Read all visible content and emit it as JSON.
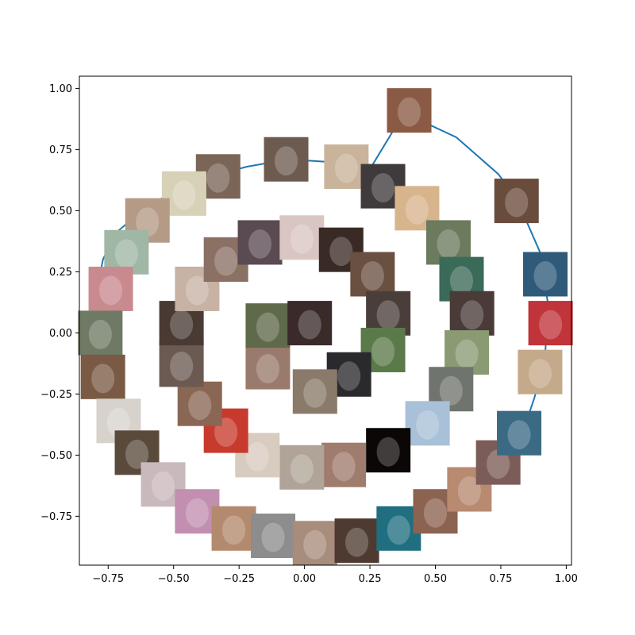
{
  "chart_data": {
    "type": "scatter",
    "title": "",
    "xlabel": "",
    "ylabel": "",
    "xlim": [
      -0.86,
      1.02
    ],
    "ylim": [
      -0.95,
      1.05
    ],
    "x_ticks": [
      "−0.75",
      "−0.50",
      "−0.25",
      "0.00",
      "0.25",
      "0.50",
      "0.75",
      "1.00"
    ],
    "x_tick_values": [
      -0.75,
      -0.5,
      -0.25,
      0.0,
      0.25,
      0.5,
      0.75,
      1.0
    ],
    "y_ticks": [
      "−0.75",
      "−0.50",
      "−0.25",
      "0.00",
      "0.25",
      "0.50",
      "0.75",
      "1.00"
    ],
    "y_tick_values": [
      -0.75,
      -0.5,
      -0.25,
      0.0,
      0.25,
      0.5,
      0.75,
      1.0
    ],
    "grid": false,
    "line_color": "#1f77b4",
    "trajectory": {
      "x": [
        -0.78,
        -0.79,
        -0.77,
        -0.72,
        -0.62,
        -0.5,
        -0.36,
        -0.22,
        -0.06,
        0.08,
        0.25,
        0.38,
        0.58,
        0.74,
        0.81,
        0.9,
        0.93,
        0.92,
        0.88,
        0.83
      ],
      "y": [
        0.08,
        0.19,
        0.3,
        0.41,
        0.5,
        0.58,
        0.64,
        0.68,
        0.71,
        0.7,
        0.67,
        0.9,
        0.8,
        0.65,
        0.55,
        0.33,
        0.12,
        -0.08,
        -0.26,
        -0.42
      ]
    },
    "thumbnails": [
      {
        "x": 0.4,
        "y": 0.91,
        "tone": "#8a5a44"
      },
      {
        "x": -0.07,
        "y": 0.71,
        "tone": "#6e5b4f"
      },
      {
        "x": 0.16,
        "y": 0.68,
        "tone": "#c9b39a"
      },
      {
        "x": 0.3,
        "y": 0.6,
        "tone": "#3f3a3c"
      },
      {
        "x": 0.43,
        "y": 0.51,
        "tone": "#d8b48c"
      },
      {
        "x": -0.33,
        "y": 0.64,
        "tone": "#7a6556"
      },
      {
        "x": -0.46,
        "y": 0.57,
        "tone": "#d7d1b8"
      },
      {
        "x": -0.6,
        "y": 0.46,
        "tone": "#b59a86"
      },
      {
        "x": -0.68,
        "y": 0.33,
        "tone": "#9fb7a4"
      },
      {
        "x": -0.74,
        "y": 0.18,
        "tone": "#c98a8f"
      },
      {
        "x": -0.78,
        "y": 0.0,
        "tone": "#6f7a65"
      },
      {
        "x": -0.77,
        "y": -0.18,
        "tone": "#7a5a44"
      },
      {
        "x": -0.71,
        "y": -0.36,
        "tone": "#d8d2cc"
      },
      {
        "x": -0.64,
        "y": -0.49,
        "tone": "#5a4a3c"
      },
      {
        "x": -0.54,
        "y": -0.62,
        "tone": "#c9b8bc"
      },
      {
        "x": -0.41,
        "y": -0.73,
        "tone": "#c28fb0"
      },
      {
        "x": -0.27,
        "y": -0.8,
        "tone": "#b48a6e"
      },
      {
        "x": -0.12,
        "y": -0.83,
        "tone": "#8d8d8d"
      },
      {
        "x": 0.04,
        "y": -0.86,
        "tone": "#a88c7c"
      },
      {
        "x": 0.2,
        "y": -0.85,
        "tone": "#4e3a30"
      },
      {
        "x": 0.36,
        "y": -0.8,
        "tone": "#1f6f80"
      },
      {
        "x": 0.5,
        "y": -0.73,
        "tone": "#8c6250"
      },
      {
        "x": 0.63,
        "y": -0.64,
        "tone": "#b88a70"
      },
      {
        "x": 0.74,
        "y": -0.53,
        "tone": "#7c5c58"
      },
      {
        "x": 0.82,
        "y": -0.41,
        "tone": "#3b6a84"
      },
      {
        "x": 0.9,
        "y": -0.16,
        "tone": "#c4a98a"
      },
      {
        "x": 0.94,
        "y": 0.04,
        "tone": "#c0343a"
      },
      {
        "x": 0.92,
        "y": 0.24,
        "tone": "#2f5a7a"
      },
      {
        "x": 0.81,
        "y": 0.54,
        "tone": "#6a4c3c"
      },
      {
        "x": 0.55,
        "y": 0.37,
        "tone": "#6c7a5e"
      },
      {
        "x": 0.6,
        "y": 0.22,
        "tone": "#3a6a58"
      },
      {
        "x": 0.64,
        "y": 0.08,
        "tone": "#4a3a38"
      },
      {
        "x": 0.62,
        "y": -0.08,
        "tone": "#8a9a72"
      },
      {
        "x": 0.56,
        "y": -0.23,
        "tone": "#70746e"
      },
      {
        "x": 0.47,
        "y": -0.37,
        "tone": "#a8c0d8"
      },
      {
        "x": 0.32,
        "y": -0.48,
        "tone": "#0b0706"
      },
      {
        "x": 0.15,
        "y": -0.54,
        "tone": "#a07c6e"
      },
      {
        "x": -0.01,
        "y": -0.55,
        "tone": "#b0a498"
      },
      {
        "x": -0.18,
        "y": -0.5,
        "tone": "#d8cbbf"
      },
      {
        "x": -0.3,
        "y": -0.4,
        "tone": "#c83a2e"
      },
      {
        "x": -0.4,
        "y": -0.29,
        "tone": "#8a6654"
      },
      {
        "x": -0.47,
        "y": -0.13,
        "tone": "#6b5a52"
      },
      {
        "x": -0.47,
        "y": 0.04,
        "tone": "#4a3a34"
      },
      {
        "x": -0.41,
        "y": 0.18,
        "tone": "#c7b2a4"
      },
      {
        "x": -0.3,
        "y": 0.3,
        "tone": "#8b7064"
      },
      {
        "x": -0.17,
        "y": 0.37,
        "tone": "#5a4a52"
      },
      {
        "x": -0.01,
        "y": 0.39,
        "tone": "#d9c6c2"
      },
      {
        "x": 0.14,
        "y": 0.34,
        "tone": "#3a2a26"
      },
      {
        "x": 0.26,
        "y": 0.24,
        "tone": "#6a5040"
      },
      {
        "x": 0.32,
        "y": 0.08,
        "tone": "#4a3e3a"
      },
      {
        "x": 0.3,
        "y": -0.07,
        "tone": "#5a7a4a"
      },
      {
        "x": 0.17,
        "y": -0.17,
        "tone": "#2a2a2e"
      },
      {
        "x": 0.04,
        "y": -0.24,
        "tone": "#8a7a6a"
      },
      {
        "x": -0.14,
        "y": -0.14,
        "tone": "#9a7a6c"
      },
      {
        "x": -0.14,
        "y": 0.03,
        "tone": "#5e6a4a"
      },
      {
        "x": 0.02,
        "y": 0.04,
        "tone": "#3a2a2a"
      }
    ]
  }
}
